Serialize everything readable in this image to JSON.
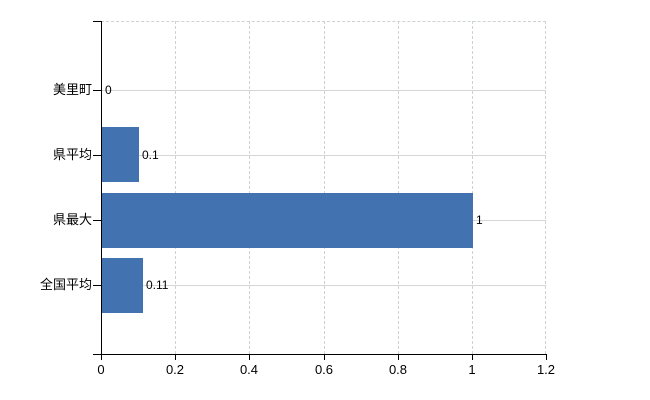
{
  "chart_data": {
    "type": "bar",
    "orientation": "horizontal",
    "title": "",
    "xlabel": "",
    "ylabel": "",
    "categories": [
      "美里町",
      "県平均",
      "県最大",
      "全国平均"
    ],
    "values": [
      0,
      0.1,
      1,
      0.11
    ],
    "value_labels": [
      "0",
      "0.1",
      "1",
      "0.11"
    ],
    "x_ticks": [
      0,
      0.2,
      0.4,
      0.6,
      0.8,
      1,
      1.2
    ],
    "x_tick_labels": [
      "0",
      "0.2",
      "0.4",
      "0.6",
      "0.8",
      "1",
      "1.2"
    ],
    "xlim": [
      0,
      1.2
    ],
    "grid": true,
    "legend": false,
    "bar_color": "#4272af",
    "grid_color": "#ccd4cc",
    "row_line_color": "#d6d6d6",
    "axis_color": "#000000",
    "background_color": "#ffffff"
  }
}
